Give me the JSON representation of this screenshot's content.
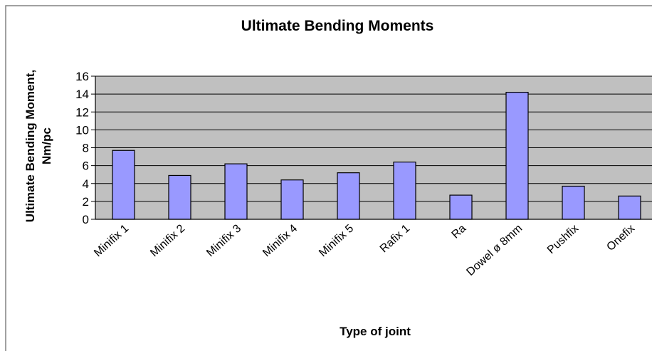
{
  "chart_data": {
    "type": "bar",
    "title": "Ultimate Bending Moments",
    "xlabel": "Type of joint",
    "ylabel_lines": [
      "Ultimate Bending Moment,",
      "Nm/pc"
    ],
    "categories": [
      "Minifix 1",
      "Minifix 2",
      "Minifix 3",
      "Minifix 4",
      "Minifix 5",
      "Rafix 1",
      "Ra",
      "Dowel ø 8mm",
      "Pushfix",
      "Onefix"
    ],
    "values": [
      7.7,
      4.9,
      6.2,
      4.4,
      5.2,
      6.4,
      2.7,
      14.2,
      3.7,
      2.6
    ],
    "ylim": [
      0,
      16
    ],
    "yticks": [
      "0",
      "2",
      "4",
      "6",
      "8",
      "10",
      "12",
      "14",
      "16"
    ],
    "grid": true,
    "colors": {
      "bar_fill": "#9999ff",
      "bar_stroke": "#000000",
      "plot_bg": "#c0c0c0",
      "grid": "#000000"
    }
  }
}
